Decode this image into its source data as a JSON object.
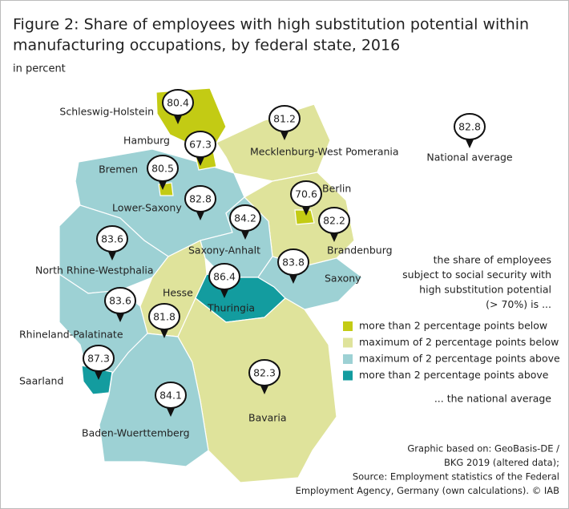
{
  "title": [
    "Figure 2: Share of employees with high substitution potential within",
    "manufacturing occupations, by federal state, 2016"
  ],
  "subtitle": "in percent",
  "national_average": {
    "value": 82.8,
    "label": "National average"
  },
  "states": [
    {
      "name": "Schleswig-Holstein",
      "value": 80.4,
      "color": "#c3cb14"
    },
    {
      "name": "Hamburg",
      "value": 67.3,
      "color": "#c3cb14"
    },
    {
      "name": "Mecklenburg-West Pomerania",
      "value": 81.2,
      "color": "#dfe39b"
    },
    {
      "name": "Bremen",
      "value": 80.5,
      "color": "#c3cb14"
    },
    {
      "name": "Lower-Saxony",
      "value": 82.8,
      "color": "#9dd1d4"
    },
    {
      "name": "Berlin",
      "value": 70.6,
      "color": "#c3cb14"
    },
    {
      "name": "Brandenburg",
      "value": 82.2,
      "color": "#dfe39b"
    },
    {
      "name": "Saxony-Anhalt",
      "value": 84.2,
      "color": "#9dd1d4"
    },
    {
      "name": "North Rhine-Westphalia",
      "value": 83.6,
      "color": "#9dd1d4"
    },
    {
      "name": "Saxony",
      "value": 83.8,
      "color": "#9dd1d4"
    },
    {
      "name": "Thuringia",
      "value": 86.4,
      "color": "#139c9f"
    },
    {
      "name": "Hesse",
      "value": 81.8,
      "color": "#dfe39b"
    },
    {
      "name": "Rhineland-Palatinate",
      "value": 83.6,
      "color": "#9dd1d4"
    },
    {
      "name": "Saarland",
      "value": 87.3,
      "color": "#139c9f"
    },
    {
      "name": "Bavaria",
      "value": 82.3,
      "color": "#dfe39b"
    },
    {
      "name": "Baden-Wuerttemberg",
      "value": 84.1,
      "color": "#9dd1d4"
    }
  ],
  "legend": {
    "intro": [
      "the share of employees",
      "subject to social security with",
      "high substitution potential",
      "(> 70%) is ..."
    ],
    "items": [
      {
        "label": "more than 2 percentage points below",
        "color": "#c3cb14"
      },
      {
        "label": "maximum of 2 percentage points below",
        "color": "#dfe39b"
      },
      {
        "label": "maximum of  2 percentage points above",
        "color": "#9dd1d4"
      },
      {
        "label": "more than 2 percentage points above",
        "color": "#139c9f"
      }
    ],
    "outro": "... the national average"
  },
  "source": [
    "Graphic based on: GeoBasis-DE /",
    "BKG 2019 (altered data);",
    "Source: Employment statistics of the Federal",
    "Employment Agency, Germany (own calculations). © IAB"
  ]
}
